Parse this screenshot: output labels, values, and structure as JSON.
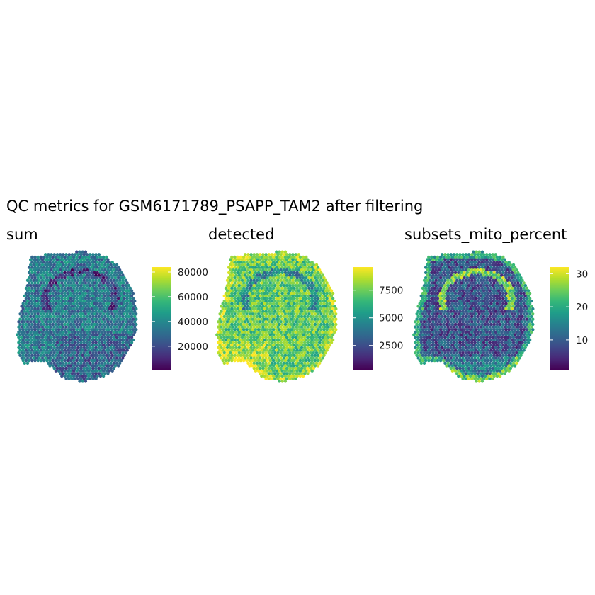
{
  "title": "QC metrics for GSM6171789_PSAPP_TAM2 after filtering",
  "colors": {
    "scale": [
      "#440154",
      "#482878",
      "#3e4a89",
      "#31688e",
      "#26828e",
      "#1f9e89",
      "#35b779",
      "#6ece58",
      "#b5de2b",
      "#fde725"
    ],
    "background": "#ffffff"
  },
  "chart_data": [
    {
      "type": "heatmap",
      "title": "sum",
      "description_kind": "spatial spot map colored by value",
      "legend": {
        "ticks": [
          "20000",
          "40000",
          "60000",
          "80000"
        ],
        "tick_values": [
          20000,
          40000,
          60000,
          80000
        ],
        "range": [
          1000,
          84000
        ],
        "placement": "right"
      },
      "typical_value": 35000
    },
    {
      "type": "heatmap",
      "title": "detected",
      "legend": {
        "ticks": [
          "2500",
          "5000",
          "7500"
        ],
        "tick_values": [
          2500,
          5000,
          7500
        ],
        "range": [
          300,
          9600
        ],
        "placement": "right"
      },
      "typical_value": 7200
    },
    {
      "type": "heatmap",
      "title": "subsets_mito_percent",
      "legend": {
        "ticks": [
          "10",
          "20",
          "30"
        ],
        "tick_values": [
          10,
          20,
          30
        ],
        "range": [
          1,
          32
        ],
        "placement": "right"
      },
      "typical_value": 9
    }
  ]
}
